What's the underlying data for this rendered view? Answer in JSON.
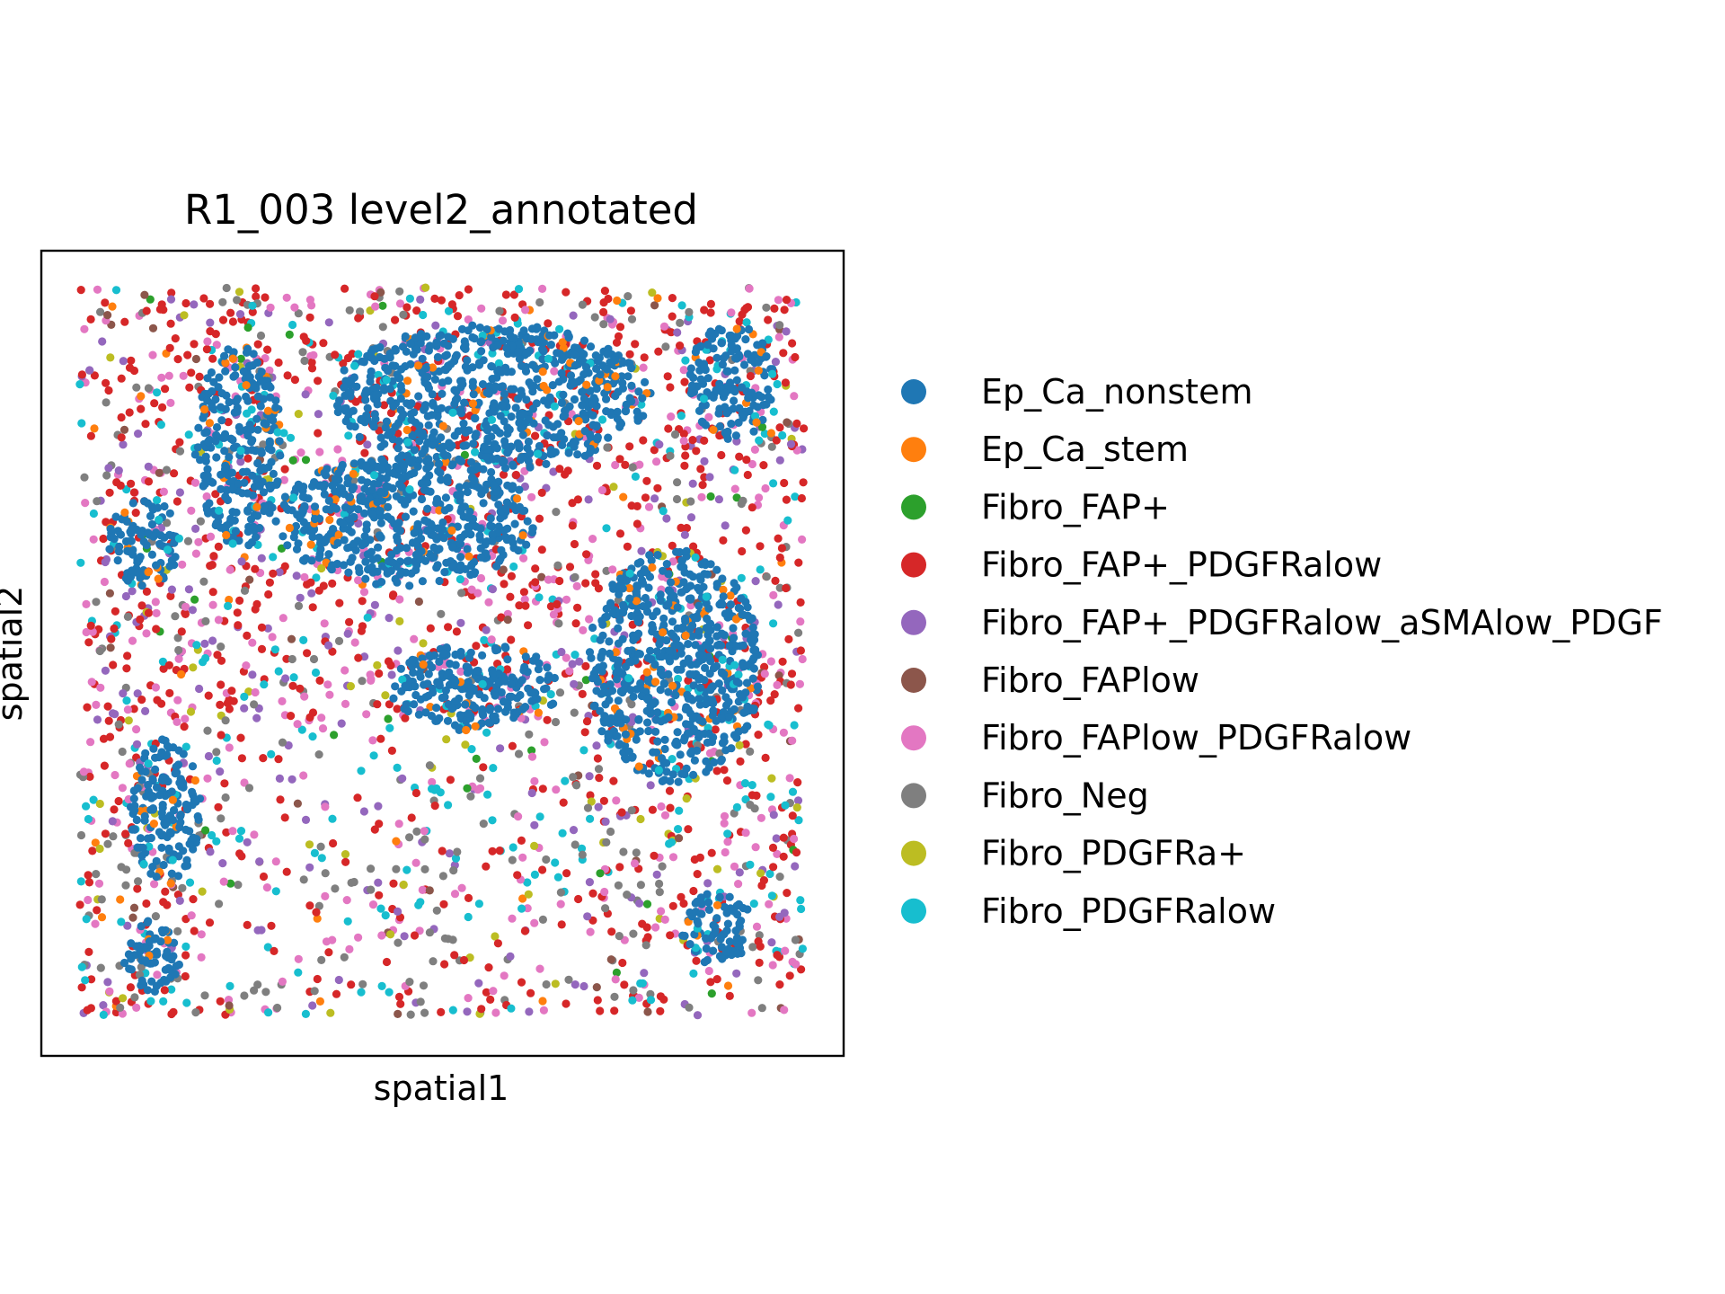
{
  "chart_data": {
    "type": "scatter",
    "title": "R1_003 level2_annotated",
    "xlabel": "spatial1",
    "ylabel": "spatial2",
    "xticks": "none",
    "yticks": "none",
    "grid": false,
    "legend_position": "right",
    "xlim": [
      0,
      100
    ],
    "ylim": [
      0,
      100
    ],
    "categories": [
      {
        "name": "Ep_Ca_nonstem",
        "color": "#1f77b4"
      },
      {
        "name": "Ep_Ca_stem",
        "color": "#ff7f0e"
      },
      {
        "name": "Fibro_FAP+",
        "color": "#2ca02c"
      },
      {
        "name": "Fibro_FAP+_PDGFRalow",
        "color": "#d62728"
      },
      {
        "name": "Fibro_FAP+_PDGFRalow_aSMAlow_PDGF",
        "color": "#9467bd"
      },
      {
        "name": "Fibro_FAPlow",
        "color": "#8c564b"
      },
      {
        "name": "Fibro_FAPlow_PDGFRalow",
        "color": "#e377c2"
      },
      {
        "name": "Fibro_Neg",
        "color": "#7f7f7f"
      },
      {
        "name": "Fibro_PDGFRa+",
        "color": "#bcbd22"
      },
      {
        "name": "Fibro_PDGFRalow",
        "color": "#17becf"
      }
    ],
    "epithelial_regions": [
      {
        "label": "top-center band",
        "center": [
          57,
          85
        ],
        "extent": [
          22,
          10
        ]
      },
      {
        "label": "left-upper band",
        "center": [
          22,
          78
        ],
        "extent": [
          6,
          14
        ]
      },
      {
        "label": "left-middle patch",
        "center": [
          9,
          65
        ],
        "extent": [
          5,
          6
        ]
      },
      {
        "label": "central upper mass",
        "center": [
          45,
          68
        ],
        "extent": [
          18,
          9
        ]
      },
      {
        "label": "right diagonal mass",
        "center": [
          82,
          48
        ],
        "extent": [
          12,
          16
        ]
      },
      {
        "label": "top-right cluster",
        "center": [
          90,
          87
        ],
        "extent": [
          6,
          8
        ]
      },
      {
        "label": "central lower band",
        "center": [
          55,
          45
        ],
        "extent": [
          12,
          6
        ]
      },
      {
        "label": "left-lower band",
        "center": [
          12,
          28
        ],
        "extent": [
          5,
          10
        ]
      },
      {
        "label": "bottom-right cluster",
        "center": [
          88,
          12
        ],
        "extent": [
          5,
          5
        ]
      },
      {
        "label": "bottom-left cluster",
        "center": [
          10,
          8
        ],
        "extent": [
          4,
          5
        ]
      }
    ]
  }
}
